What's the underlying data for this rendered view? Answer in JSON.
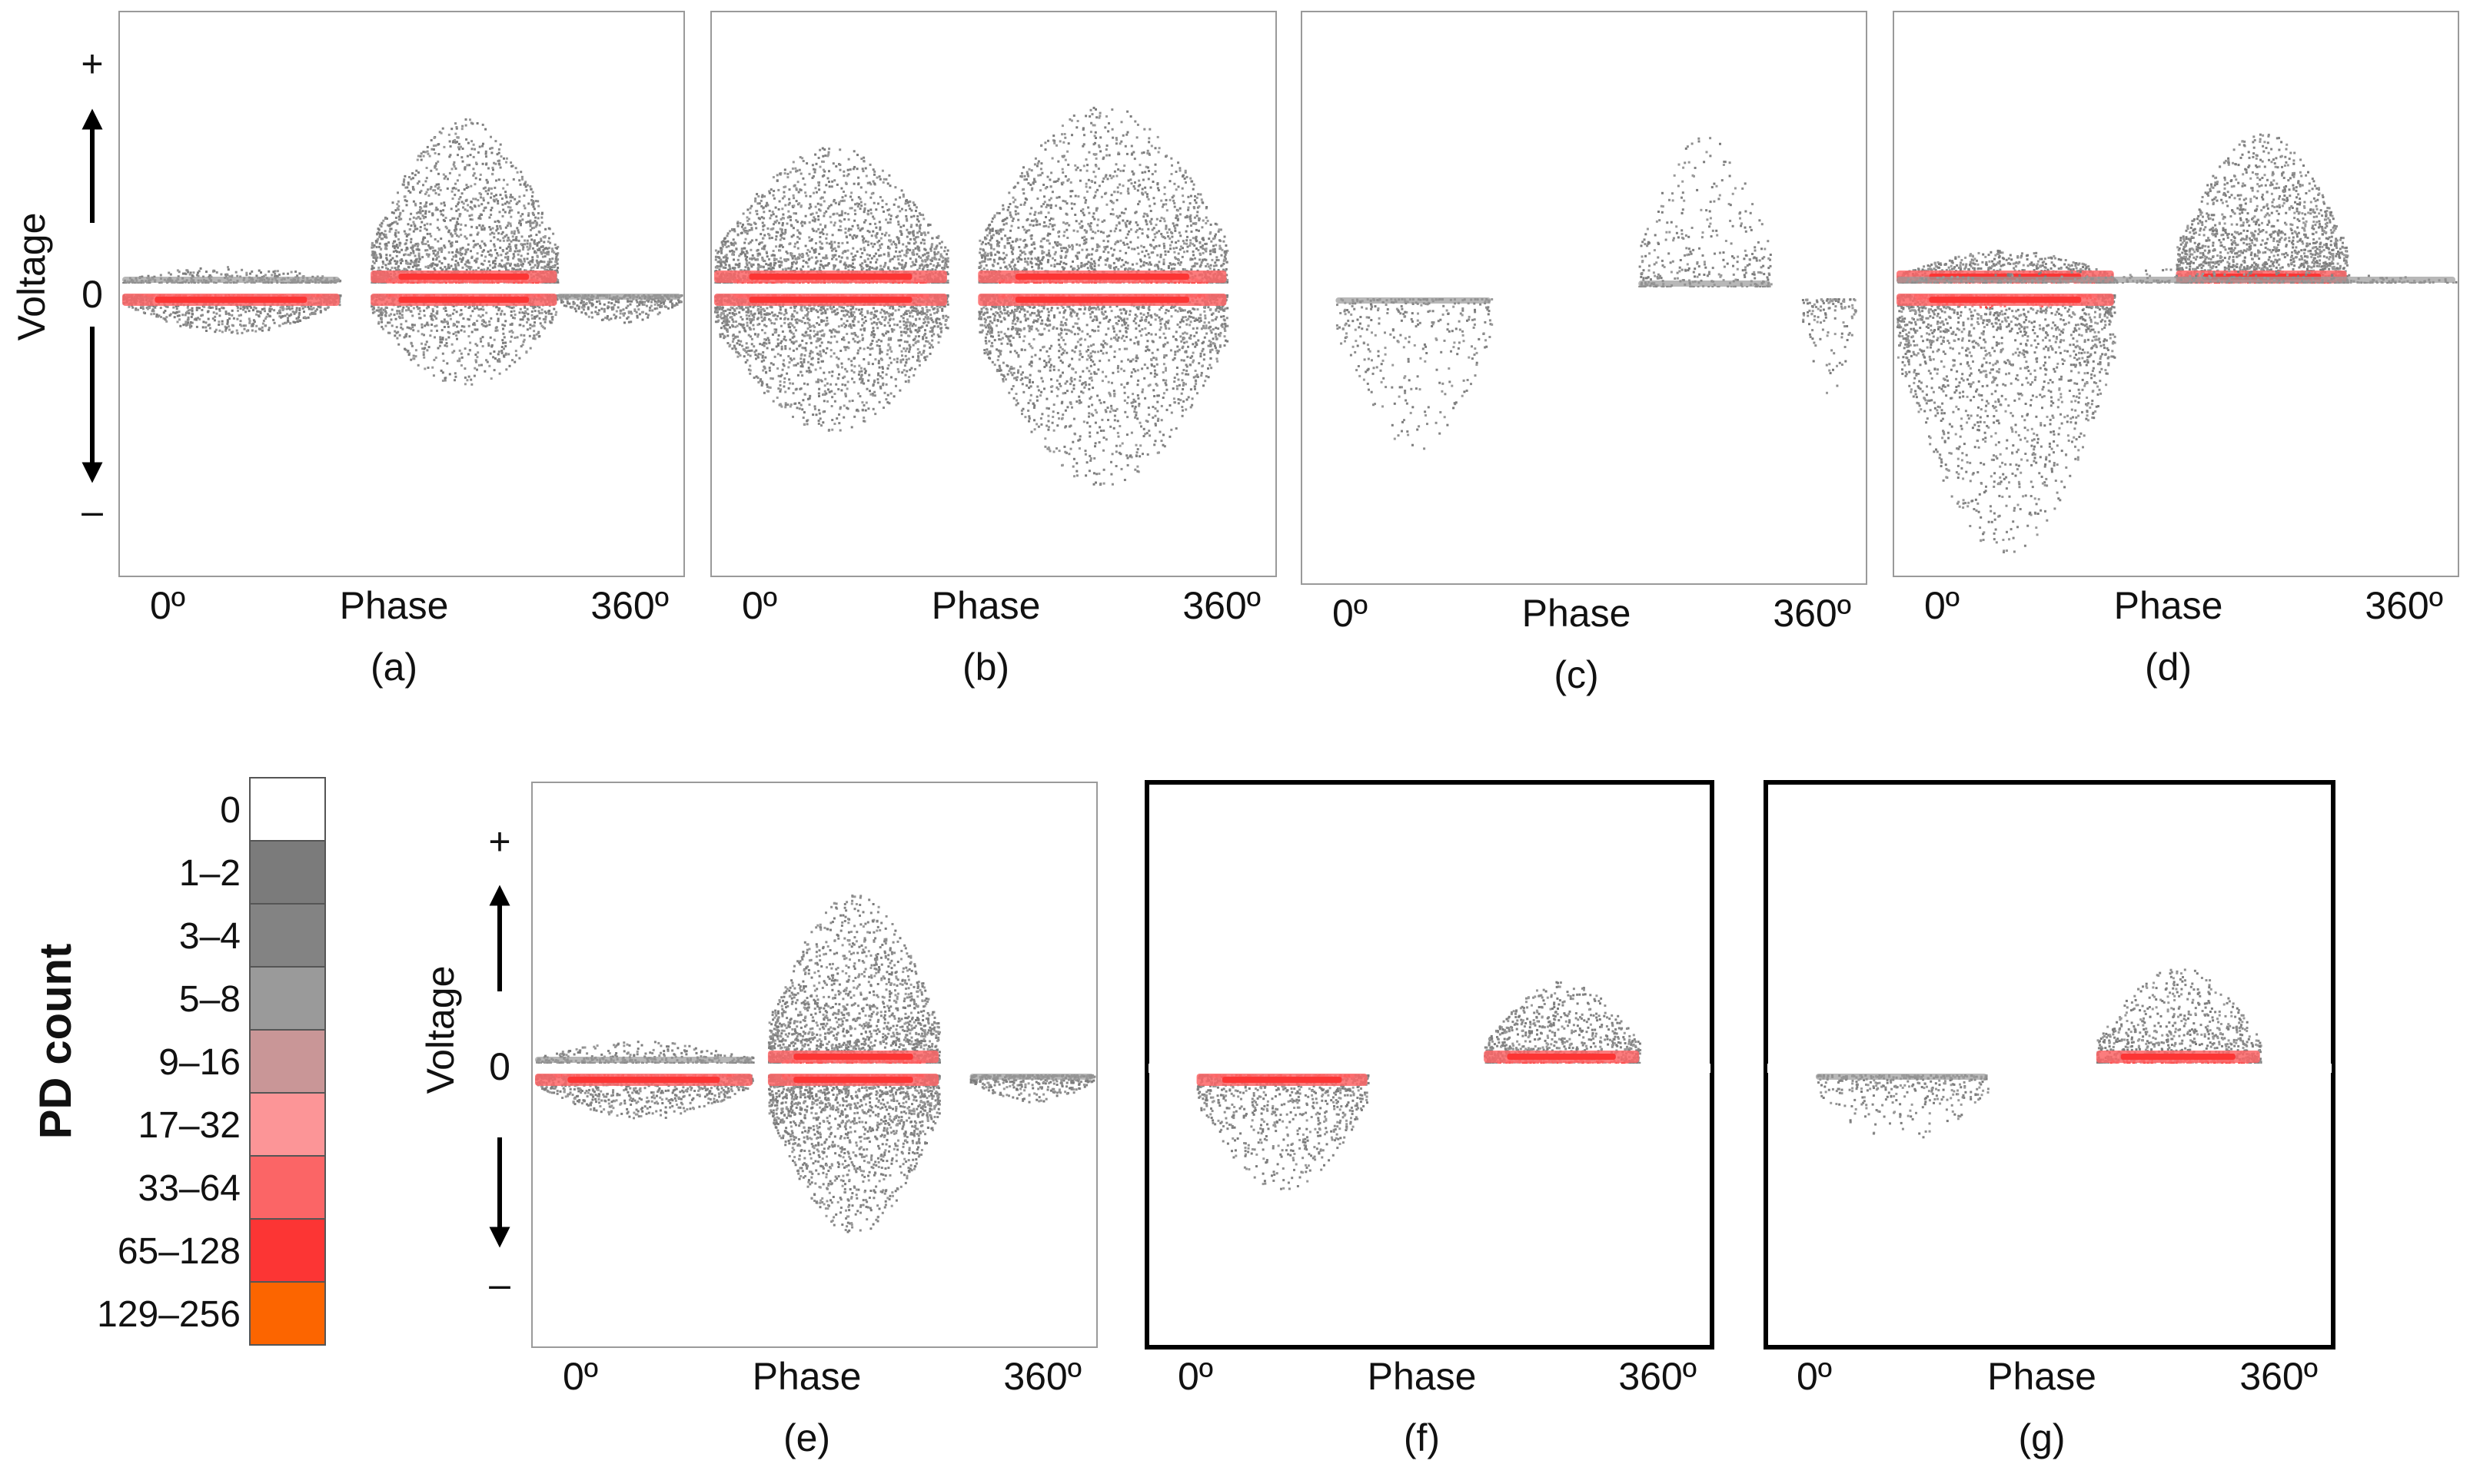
{
  "figure": {
    "y_axis_label": "Voltage",
    "y_plus": "+",
    "y_zero": "0",
    "y_minus": "–",
    "x_left": "0º",
    "x_mid": "Phase",
    "x_right": "360º"
  },
  "legend": {
    "title": "PD count",
    "bins": [
      {
        "label": "0",
        "color": "#ffffff"
      },
      {
        "label": "1–2",
        "color": "#7b7b7b"
      },
      {
        "label": "3–4",
        "color": "#838383"
      },
      {
        "label": "5–8",
        "color": "#9a9a9a"
      },
      {
        "label": "9–16",
        "color": "#c99697"
      },
      {
        "label": "17–32",
        "color": "#fc9597"
      },
      {
        "label": "33–64",
        "color": "#fb6566"
      },
      {
        "label": "65–128",
        "color": "#fc3534"
      },
      {
        "label": "129–256",
        "color": "#fc6500"
      }
    ]
  },
  "chart_data": [
    {
      "type": "heatmap",
      "panel": "(a)",
      "xlabel": "Phase",
      "ylabel": "Voltage",
      "xlim": [
        0,
        360
      ],
      "framed": false,
      "clusters": [
        {
          "phase": [
            0,
            140
          ],
          "polarity": "positive",
          "density": "low",
          "spread": 0.06
        },
        {
          "phase": [
            0,
            140
          ],
          "polarity": "negative",
          "density": "medium",
          "spread": 0.14
        },
        {
          "phase": [
            160,
            280
          ],
          "polarity": "positive",
          "density": "high",
          "spread": 0.6
        },
        {
          "phase": [
            160,
            280
          ],
          "polarity": "negative",
          "density": "medium",
          "spread": 0.33
        },
        {
          "phase": [
            280,
            360
          ],
          "polarity": "negative",
          "density": "low",
          "spread": 0.1
        }
      ]
    },
    {
      "type": "heatmap",
      "panel": "(b)",
      "xlabel": "Phase",
      "ylabel": "Voltage",
      "xlim": [
        0,
        360
      ],
      "framed": false,
      "clusters": [
        {
          "phase": [
            0,
            150
          ],
          "polarity": "positive",
          "density": "high",
          "spread": 0.5
        },
        {
          "phase": [
            0,
            150
          ],
          "polarity": "negative",
          "density": "high",
          "spread": 0.5
        },
        {
          "phase": [
            170,
            330
          ],
          "polarity": "positive",
          "density": "high",
          "spread": 0.65
        },
        {
          "phase": [
            170,
            330
          ],
          "polarity": "negative",
          "density": "high",
          "spread": 0.7
        }
      ]
    },
    {
      "type": "heatmap",
      "panel": "(c)",
      "xlabel": "Phase",
      "ylabel": "Voltage",
      "xlim": [
        0,
        360
      ],
      "framed": false,
      "clusters": [
        {
          "phase": [
            20,
            120
          ],
          "polarity": "negative",
          "density": "low",
          "spread": 0.55
        },
        {
          "phase": [
            215,
            300
          ],
          "polarity": "positive",
          "density": "low",
          "spread": 0.55
        },
        {
          "phase": [
            320,
            355
          ],
          "polarity": "negative",
          "density": "very low",
          "spread": 0.35
        }
      ]
    },
    {
      "type": "heatmap",
      "panel": "(d)",
      "xlabel": "Phase",
      "ylabel": "Voltage",
      "xlim": [
        0,
        360
      ],
      "framed": false,
      "clusters": [
        {
          "phase": [
            0,
            140
          ],
          "polarity": "negative",
          "density": "high",
          "spread": 0.95
        },
        {
          "phase": [
            0,
            140
          ],
          "polarity": "positive",
          "density": "medium",
          "spread": 0.12
        },
        {
          "phase": [
            180,
            290
          ],
          "polarity": "positive",
          "density": "high",
          "spread": 0.55
        },
        {
          "phase": [
            0,
            360
          ],
          "polarity": "positive",
          "density": "low",
          "spread": 0.05
        }
      ]
    },
    {
      "type": "heatmap",
      "panel": "(e)",
      "xlabel": "Phase",
      "ylabel": "Voltage",
      "xlim": [
        0,
        360
      ],
      "framed": false,
      "clusters": [
        {
          "phase": [
            0,
            140
          ],
          "polarity": "positive",
          "density": "low",
          "spread": 0.08
        },
        {
          "phase": [
            0,
            140
          ],
          "polarity": "negative",
          "density": "medium",
          "spread": 0.16
        },
        {
          "phase": [
            150,
            260
          ],
          "polarity": "positive",
          "density": "high",
          "spread": 0.62
        },
        {
          "phase": [
            150,
            260
          ],
          "polarity": "negative",
          "density": "high",
          "spread": 0.58
        },
        {
          "phase": [
            280,
            360
          ],
          "polarity": "negative",
          "density": "low",
          "spread": 0.1
        }
      ]
    },
    {
      "type": "heatmap",
      "panel": "(f)",
      "xlabel": "Phase",
      "ylabel": "Voltage",
      "xlim": [
        0,
        360
      ],
      "framed": true,
      "clusters": [
        {
          "phase": [
            30,
            140
          ],
          "polarity": "negative",
          "density": "medium",
          "spread": 0.42
        },
        {
          "phase": [
            215,
            315
          ],
          "polarity": "positive",
          "density": "medium",
          "spread": 0.3
        }
      ]
    },
    {
      "type": "heatmap",
      "panel": "(g)",
      "xlabel": "Phase",
      "ylabel": "Voltage",
      "xlim": [
        0,
        360
      ],
      "framed": true,
      "clusters": [
        {
          "phase": [
            30,
            140
          ],
          "polarity": "negative",
          "density": "low",
          "spread": 0.25
        },
        {
          "phase": [
            210,
            315
          ],
          "polarity": "positive",
          "density": "medium",
          "spread": 0.35
        }
      ]
    }
  ]
}
